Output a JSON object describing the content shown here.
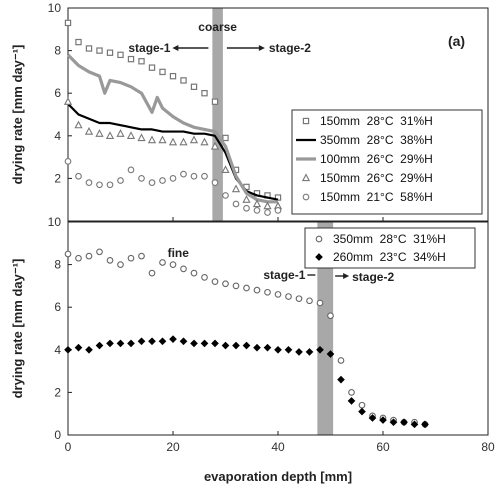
{
  "chart_data": [
    {
      "type": "scatter",
      "panel_label": "(a)",
      "annotation": "coarse",
      "stage1_label": "stage-1",
      "stage2_label": "stage-2",
      "transition_band": [
        27.5,
        29.5
      ],
      "xlim": [
        0,
        80
      ],
      "ylim": [
        0,
        10
      ],
      "xticks": [
        "0",
        "20",
        "40",
        "60",
        "80"
      ],
      "yticks": [
        "0",
        "2",
        "4",
        "6",
        "8",
        "10"
      ],
      "ylabel": "drying rate [mm day⁻¹]",
      "legend_position": "right",
      "series": [
        {
          "name": "150mm  28°C  31%H",
          "marker": "square",
          "color": "#777777",
          "x": [
            0,
            2,
            4,
            6,
            8,
            10,
            12,
            14,
            16,
            18,
            20,
            22,
            24,
            26,
            28,
            30,
            32,
            34,
            36,
            38,
            40
          ],
          "y": [
            9.3,
            8.4,
            8.1,
            8.0,
            7.9,
            7.8,
            7.6,
            7.5,
            7.2,
            7.0,
            6.8,
            6.6,
            6.3,
            6.0,
            5.6,
            3.9,
            2.4,
            1.6,
            1.3,
            1.2,
            1.1
          ]
        },
        {
          "name": "350mm  28°C  38%H",
          "marker": "line",
          "color": "#000000",
          "x": [
            0,
            2,
            4,
            6,
            8,
            10,
            12,
            14,
            16,
            18,
            20,
            22,
            24,
            26,
            28,
            30,
            32,
            34,
            36,
            38,
            40
          ],
          "y": [
            5.5,
            5.0,
            4.8,
            4.6,
            4.6,
            4.5,
            4.4,
            4.3,
            4.3,
            4.2,
            4.2,
            4.2,
            4.1,
            4.1,
            4.0,
            3.2,
            2.0,
            1.4,
            1.2,
            1.1,
            1.0
          ]
        },
        {
          "name": "100mm  26°C  29%H",
          "marker": "thick-line",
          "color": "#999999",
          "x": [
            0,
            2,
            4,
            6,
            7,
            8,
            10,
            12,
            14,
            16,
            17,
            18,
            20,
            22,
            24,
            26,
            28,
            30,
            32,
            34,
            36,
            38,
            40
          ],
          "y": [
            7.8,
            7.3,
            7.0,
            6.8,
            6.0,
            6.6,
            6.5,
            6.3,
            6.0,
            5.1,
            5.8,
            5.3,
            4.9,
            4.6,
            4.4,
            4.3,
            4.2,
            3.5,
            2.1,
            1.3,
            1.0,
            0.9,
            0.9
          ]
        },
        {
          "name": "150mm  26°C  29%H",
          "marker": "triangle",
          "color": "#777777",
          "x": [
            0,
            2,
            4,
            6,
            8,
            10,
            12,
            14,
            16,
            18,
            20,
            22,
            24,
            26,
            28,
            30,
            32,
            34,
            36,
            38,
            40
          ],
          "y": [
            5.6,
            4.5,
            4.2,
            4.1,
            4.0,
            4.1,
            4.0,
            3.9,
            3.8,
            3.8,
            3.7,
            3.7,
            3.8,
            3.7,
            3.5,
            2.4,
            1.5,
            1.0,
            0.8,
            0.7,
            0.7
          ]
        },
        {
          "name": "150mm  21°C  58%H",
          "marker": "circle",
          "color": "#777777",
          "x": [
            0,
            2,
            4,
            6,
            8,
            10,
            12,
            14,
            16,
            18,
            20,
            22,
            24,
            26,
            28,
            30,
            32,
            34,
            36,
            38,
            40
          ],
          "y": [
            2.8,
            2.1,
            1.8,
            1.7,
            1.7,
            1.9,
            2.4,
            2.0,
            1.8,
            1.9,
            2.0,
            2.2,
            2.1,
            2.1,
            1.8,
            1.2,
            0.8,
            0.6,
            0.5,
            0.4,
            0.5
          ]
        }
      ]
    },
    {
      "type": "scatter",
      "panel_label": "(b)",
      "annotation": "fine",
      "stage1_label": "stage-1",
      "stage2_label": "stage-2",
      "transition_band": [
        47.5,
        50.5
      ],
      "xlim": [
        0,
        80
      ],
      "ylim": [
        0,
        10
      ],
      "xticks": [
        "0",
        "20",
        "40",
        "60",
        "80"
      ],
      "yticks": [
        "0",
        "2",
        "4",
        "6",
        "8",
        "10"
      ],
      "xlabel": "evaporation depth [mm]",
      "ylabel": "drying rate [mm day⁻¹]",
      "legend_position": "top-right",
      "series": [
        {
          "name": "350mm  28°C  31%H",
          "marker": "circle",
          "color": "#666666",
          "x": [
            0,
            2,
            4,
            6,
            8,
            10,
            12,
            14,
            16,
            18,
            20,
            22,
            24,
            26,
            28,
            30,
            32,
            34,
            36,
            38,
            40,
            42,
            44,
            46,
            48,
            50,
            52,
            54,
            56,
            58,
            60,
            62,
            64,
            66,
            68
          ],
          "y": [
            8.5,
            8.3,
            8.4,
            8.6,
            8.2,
            8.0,
            8.3,
            8.4,
            7.6,
            8.1,
            8.0,
            7.8,
            7.6,
            7.4,
            7.2,
            7.1,
            7.0,
            6.9,
            6.8,
            6.7,
            6.6,
            6.5,
            6.4,
            6.3,
            6.2,
            5.6,
            3.5,
            2.0,
            1.4,
            0.9,
            0.8,
            0.7,
            0.6,
            0.6,
            0.5
          ]
        },
        {
          "name": "260mm  23°C  34%H",
          "marker": "diamond",
          "color": "#000000",
          "x": [
            0,
            2,
            4,
            6,
            8,
            10,
            12,
            14,
            16,
            18,
            20,
            22,
            24,
            26,
            28,
            30,
            32,
            34,
            36,
            38,
            40,
            42,
            44,
            46,
            48,
            50,
            52,
            54,
            56,
            58,
            60,
            62,
            64,
            66,
            68
          ],
          "y": [
            4.0,
            4.1,
            4.0,
            4.2,
            4.3,
            4.3,
            4.3,
            4.4,
            4.4,
            4.4,
            4.5,
            4.4,
            4.3,
            4.3,
            4.3,
            4.2,
            4.2,
            4.2,
            4.1,
            4.1,
            4.0,
            4.0,
            3.9,
            3.9,
            4.0,
            3.8,
            2.6,
            1.6,
            1.1,
            0.8,
            0.7,
            0.6,
            0.6,
            0.5,
            0.5
          ]
        }
      ]
    }
  ]
}
